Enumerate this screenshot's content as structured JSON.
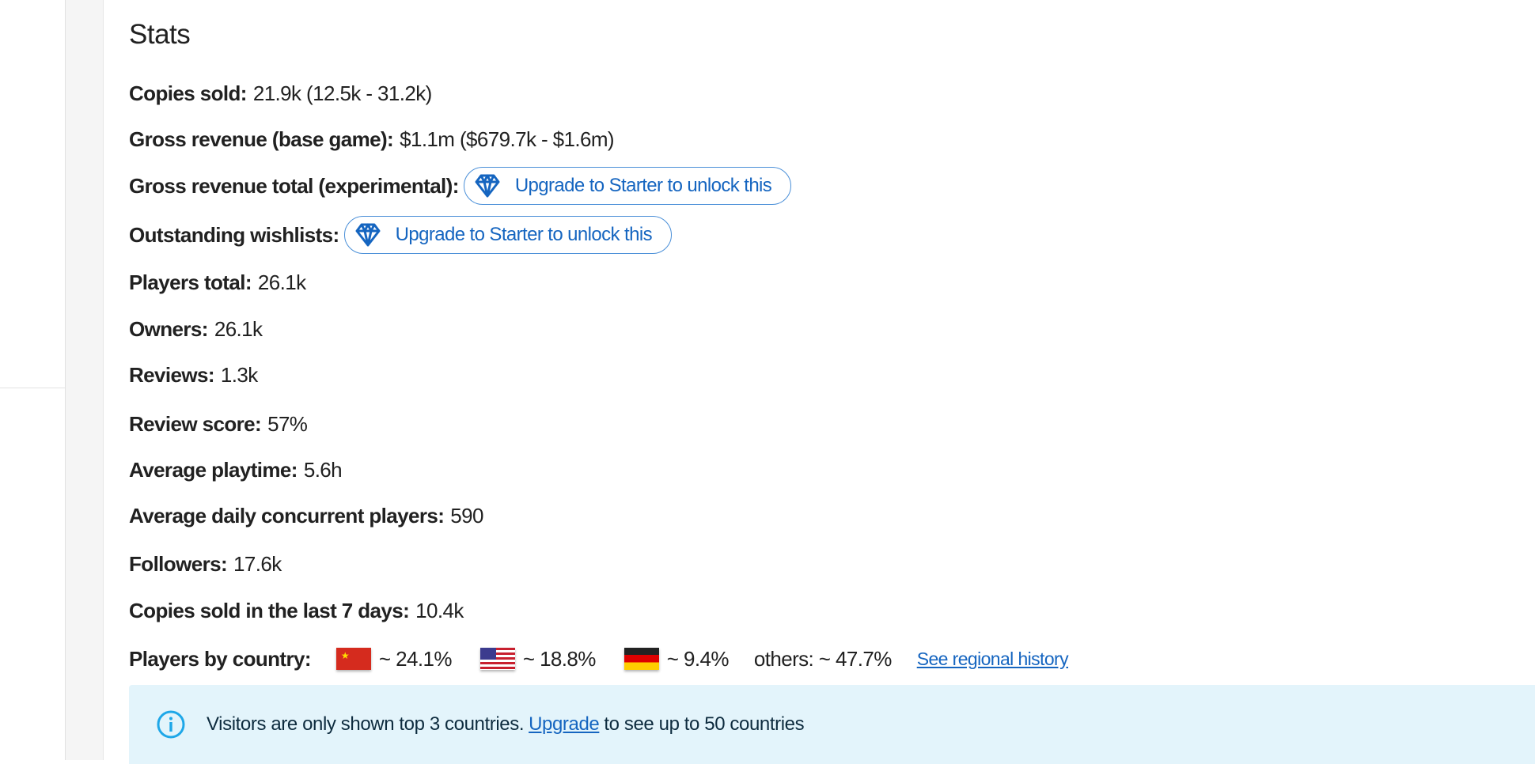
{
  "title": "Stats",
  "stats": [
    {
      "label": "Copies sold:",
      "value": "21.9k (12.5k - 31.2k)"
    },
    {
      "label": "Gross revenue (base game):",
      "value": "$1.1m ($679.7k - $1.6m)"
    },
    {
      "label": "Gross revenue total (experimental):",
      "button": "Upgrade to Starter to unlock this"
    },
    {
      "label": "Outstanding wishlists:",
      "button": "Upgrade to Starter to unlock this"
    },
    {
      "label": "Players total:",
      "value": "26.1k"
    },
    {
      "label": "Owners:",
      "value": "26.1k"
    },
    {
      "label": "Reviews:",
      "value": "1.3k"
    },
    {
      "label": "Review score:",
      "value": "57%"
    },
    {
      "label": "Average playtime:",
      "value": "5.6h"
    },
    {
      "label": "Average daily concurrent players:",
      "value": "590"
    },
    {
      "label": "Followers:",
      "value": "17.6k"
    },
    {
      "label": "Copies sold in the last 7 days:",
      "value": "10.4k"
    }
  ],
  "players_by_country": {
    "label": "Players by country:",
    "countries": [
      {
        "flag": "china-flag",
        "value": "~ 24.1%"
      },
      {
        "flag": "usa-flag",
        "value": "~ 18.8%"
      },
      {
        "flag": "germany-flag",
        "value": "~ 9.4%"
      }
    ],
    "others": "others: ~ 47.7%",
    "link": "See regional history"
  },
  "notice": {
    "icon": "info-icon",
    "text_before": "Visitors are only shown top 3 countries.",
    "link": "Upgrade",
    "text_after": "to see up to 50 countries"
  },
  "colors": {
    "accent": "#1565c0",
    "notice_bg": "#e3f4fb",
    "info_icon": "#1ea7e8"
  }
}
